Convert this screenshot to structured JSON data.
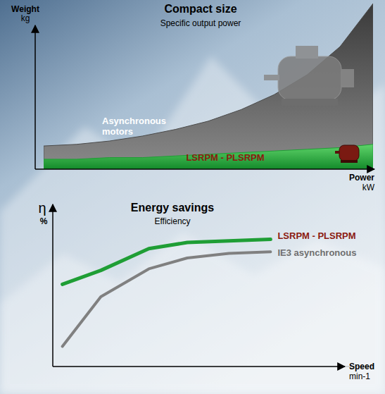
{
  "chart_data": [
    {
      "type": "area",
      "title": "Compact size",
      "subtitle": "Specific output power",
      "y_label": "Weight",
      "y_unit": "kg",
      "x_label": "Power",
      "x_unit": "kW",
      "x": [
        0,
        10,
        20,
        30,
        40,
        50,
        60,
        70,
        80,
        90,
        100
      ],
      "series": [
        {
          "name": "Asynchronous motors",
          "color": "#4a4a4a",
          "values": [
            14,
            15,
            17,
            20,
            24,
            29,
            36,
            45,
            57,
            74,
            100
          ]
        },
        {
          "name": "LSRPM - PLSRPM",
          "color": "#1f9e35",
          "values": [
            6,
            6,
            7,
            7,
            8,
            9,
            10,
            11,
            12,
            13,
            15
          ]
        }
      ],
      "xlim": [
        0,
        100
      ],
      "ylim": [
        0,
        100
      ],
      "tick_labels": false,
      "grid": false
    },
    {
      "type": "line",
      "title": "Energy savings",
      "subtitle": "Efficiency",
      "y_label": "η",
      "y_unit": "%",
      "x_label": "Speed",
      "x_unit": "min-1",
      "x": [
        3,
        15,
        30,
        42,
        55,
        68
      ],
      "series": [
        {
          "name": "LSRPM - PLSRPM",
          "color": "#1f9e35",
          "values": [
            53,
            62,
            76,
            80,
            81,
            82
          ]
        },
        {
          "name": "IE3 asynchronous",
          "color": "#808080",
          "values": [
            13,
            45,
            63,
            70,
            73,
            74
          ]
        }
      ],
      "xlim": [
        0,
        100
      ],
      "ylim": [
        0,
        100
      ],
      "tick_labels": false,
      "grid": false
    }
  ]
}
